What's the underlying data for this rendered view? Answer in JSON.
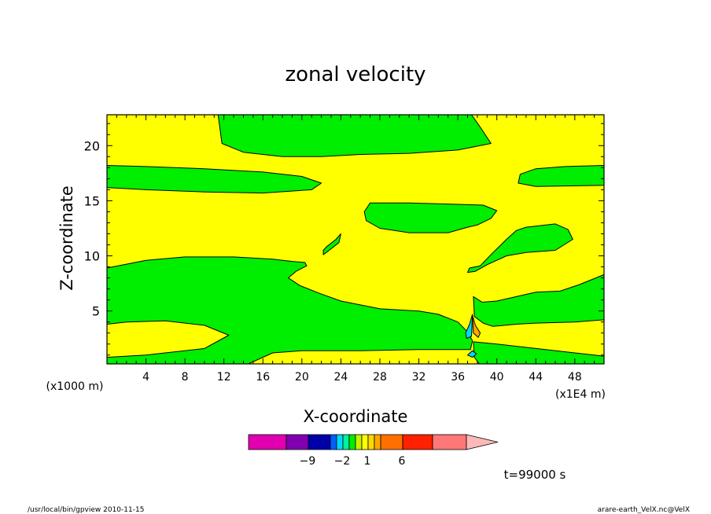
{
  "chart_data": {
    "type": "heatmap",
    "title": "zonal velocity",
    "xlabel": "X-coordinate",
    "ylabel": "Z-coordinate",
    "x_unit_note": "(x1E4 m)",
    "y_unit_note": "(x1000 m)",
    "xlim": [
      0,
      51
    ],
    "ylim": [
      0.2,
      22.8
    ],
    "x_ticks": [
      4,
      8,
      12,
      16,
      20,
      24,
      28,
      32,
      36,
      40,
      44,
      48
    ],
    "x_tick_labels": [
      "4",
      "8",
      "12",
      "16",
      "20",
      "24",
      "28",
      "32",
      "36",
      "40",
      "44",
      "48"
    ],
    "y_ticks": [
      5,
      10,
      15,
      20
    ],
    "y_tick_labels": [
      "5",
      "10",
      "15",
      "20"
    ],
    "background_level_color": "#ffff00",
    "positive_level_color": "#00ee00",
    "colorbar": {
      "colors": [
        "#e000b0",
        "#8000b0",
        "#0000a8",
        "#0060ff",
        "#00d8ff",
        "#00f0a0",
        "#00ee00",
        "#c8f000",
        "#ffff00",
        "#ffd800",
        "#ffa800",
        "#ff7000",
        "#ff2000",
        "#ff7878",
        "#ffb8b8"
      ],
      "tick_labels": [
        "−9",
        "−2",
        "1",
        "6"
      ],
      "tick_after_index": [
        1,
        4,
        8,
        11
      ]
    },
    "time_label": "t=99000 s",
    "footer_left": "/usr/local/bin/gpview  2010-11-15",
    "footer_right": "arare-earth_VelX.nc@VelX",
    "regions": [
      {
        "name": "upper-left-green",
        "color": "green",
        "points": [
          [
            0,
            18.2
          ],
          [
            4,
            18.1
          ],
          [
            10,
            17.9
          ],
          [
            16,
            17.6
          ],
          [
            20,
            17.2
          ],
          [
            22,
            16.6
          ],
          [
            21,
            16.0
          ],
          [
            16,
            15.7
          ],
          [
            10,
            15.8
          ],
          [
            4,
            16.0
          ],
          [
            0,
            16.2
          ]
        ]
      },
      {
        "name": "top-column-green",
        "color": "green",
        "points": [
          [
            11.4,
            22.8
          ],
          [
            37.4,
            22.8
          ],
          [
            38.2,
            21.8
          ],
          [
            39.4,
            20.2
          ],
          [
            36,
            19.6
          ],
          [
            31,
            19.3
          ],
          [
            26,
            19.2
          ],
          [
            22,
            19.0
          ],
          [
            18,
            19.0
          ],
          [
            14,
            19.4
          ],
          [
            11.8,
            20.2
          ]
        ]
      },
      {
        "name": "right-upper-green",
        "color": "green",
        "points": [
          [
            51,
            18.2
          ],
          [
            47,
            18.1
          ],
          [
            44,
            17.9
          ],
          [
            42.4,
            17.4
          ],
          [
            42.2,
            16.6
          ],
          [
            44,
            16.3
          ],
          [
            51,
            16.4
          ]
        ]
      },
      {
        "name": "mid-lens-green",
        "color": "green",
        "points": [
          [
            27,
            14.8
          ],
          [
            31,
            14.8
          ],
          [
            35,
            14.7
          ],
          [
            38.6,
            14.6
          ],
          [
            40,
            14.1
          ],
          [
            39.4,
            13.4
          ],
          [
            38,
            12.8
          ],
          [
            37,
            12.6
          ],
          [
            35,
            12.1
          ],
          [
            31,
            12.1
          ],
          [
            28,
            12.5
          ],
          [
            26.6,
            13.2
          ],
          [
            26.4,
            14.0
          ]
        ]
      },
      {
        "name": "small-blob-green",
        "color": "green",
        "points": [
          [
            22.5,
            10.8
          ],
          [
            23.5,
            11.5
          ],
          [
            24,
            12.0
          ],
          [
            23.8,
            11.2
          ],
          [
            22.8,
            10.5
          ],
          [
            22.2,
            10.1
          ],
          [
            22.2,
            10.5
          ]
        ]
      },
      {
        "name": "right-diagonal-green",
        "color": "green",
        "points": [
          [
            37.2,
            8.9
          ],
          [
            38.3,
            9.1
          ],
          [
            39.5,
            10.2
          ],
          [
            41,
            11.5
          ],
          [
            42,
            12.3
          ],
          [
            43,
            12.6
          ],
          [
            46,
            12.9
          ],
          [
            47.3,
            12.4
          ],
          [
            47.8,
            11.5
          ],
          [
            46,
            10.5
          ],
          [
            43,
            10.3
          ],
          [
            41,
            10.0
          ],
          [
            39,
            9.2
          ],
          [
            37.8,
            8.6
          ],
          [
            37.0,
            8.5
          ]
        ]
      },
      {
        "name": "main-band-green",
        "color": "green",
        "points": [
          [
            0,
            8.9
          ],
          [
            4,
            9.6
          ],
          [
            8,
            9.9
          ],
          [
            13,
            9.9
          ],
          [
            17,
            9.7
          ],
          [
            19,
            9.5
          ],
          [
            20.3,
            9.4
          ],
          [
            20.5,
            9.1
          ],
          [
            19.4,
            8.6
          ],
          [
            18.6,
            8.0
          ],
          [
            19.8,
            7.3
          ],
          [
            21.8,
            6.6
          ],
          [
            24,
            5.9
          ],
          [
            28,
            5.2
          ],
          [
            32,
            5.0
          ],
          [
            34,
            4.7
          ],
          [
            36,
            4.0
          ],
          [
            37.0,
            3.1
          ],
          [
            37.5,
            2.3
          ],
          [
            37.3,
            1.5
          ],
          [
            32,
            1.5
          ],
          [
            26,
            1.4
          ],
          [
            20,
            1.4
          ],
          [
            17,
            1.2
          ],
          [
            14.5,
            0.2
          ],
          [
            0,
            0.2
          ],
          [
            0,
            0.8
          ],
          [
            4,
            1.0
          ],
          [
            10,
            1.6
          ],
          [
            12.5,
            2.8
          ],
          [
            10,
            3.7
          ],
          [
            6,
            4.1
          ],
          [
            2,
            4.0
          ],
          [
            0,
            3.8
          ]
        ]
      },
      {
        "name": "right-band-green",
        "color": "green",
        "points": [
          [
            37.6,
            6.3
          ],
          [
            38.5,
            5.8
          ],
          [
            40,
            5.9
          ],
          [
            42,
            6.3
          ],
          [
            44,
            6.7
          ],
          [
            46.5,
            6.8
          ],
          [
            48.5,
            7.4
          ],
          [
            51,
            8.3
          ],
          [
            51,
            4.2
          ],
          [
            48,
            4.0
          ],
          [
            44,
            3.9
          ],
          [
            42,
            3.8
          ],
          [
            39.6,
            3.6
          ],
          [
            38.6,
            3.9
          ],
          [
            37.7,
            4.5
          ]
        ]
      },
      {
        "name": "bottom-right-green",
        "color": "green",
        "points": [
          [
            37.6,
            2.2
          ],
          [
            40,
            2.0
          ],
          [
            44,
            1.6
          ],
          [
            48,
            1.2
          ],
          [
            51,
            0.9
          ],
          [
            51,
            0.2
          ],
          [
            38.2,
            0.2
          ],
          [
            37.7,
            0.8
          ]
        ]
      },
      {
        "name": "left-blue-sliver",
        "color": "cyan",
        "points": [
          [
            37.5,
            4.7
          ],
          [
            37.2,
            3.8
          ],
          [
            36.8,
            3.0
          ],
          [
            36.9,
            2.5
          ],
          [
            37.4,
            2.7
          ]
        ]
      },
      {
        "name": "right-orange-sliver",
        "color": "orange",
        "points": [
          [
            37.5,
            4.6
          ],
          [
            37.8,
            3.7
          ],
          [
            38.3,
            3.0
          ],
          [
            38.1,
            2.6
          ],
          [
            37.6,
            3.0
          ]
        ]
      },
      {
        "name": "bottom-blue-dot",
        "color": "cyan",
        "points": [
          [
            37.0,
            1.0
          ],
          [
            37.5,
            1.4
          ],
          [
            37.9,
            1.1
          ],
          [
            37.5,
            0.8
          ]
        ]
      }
    ]
  }
}
